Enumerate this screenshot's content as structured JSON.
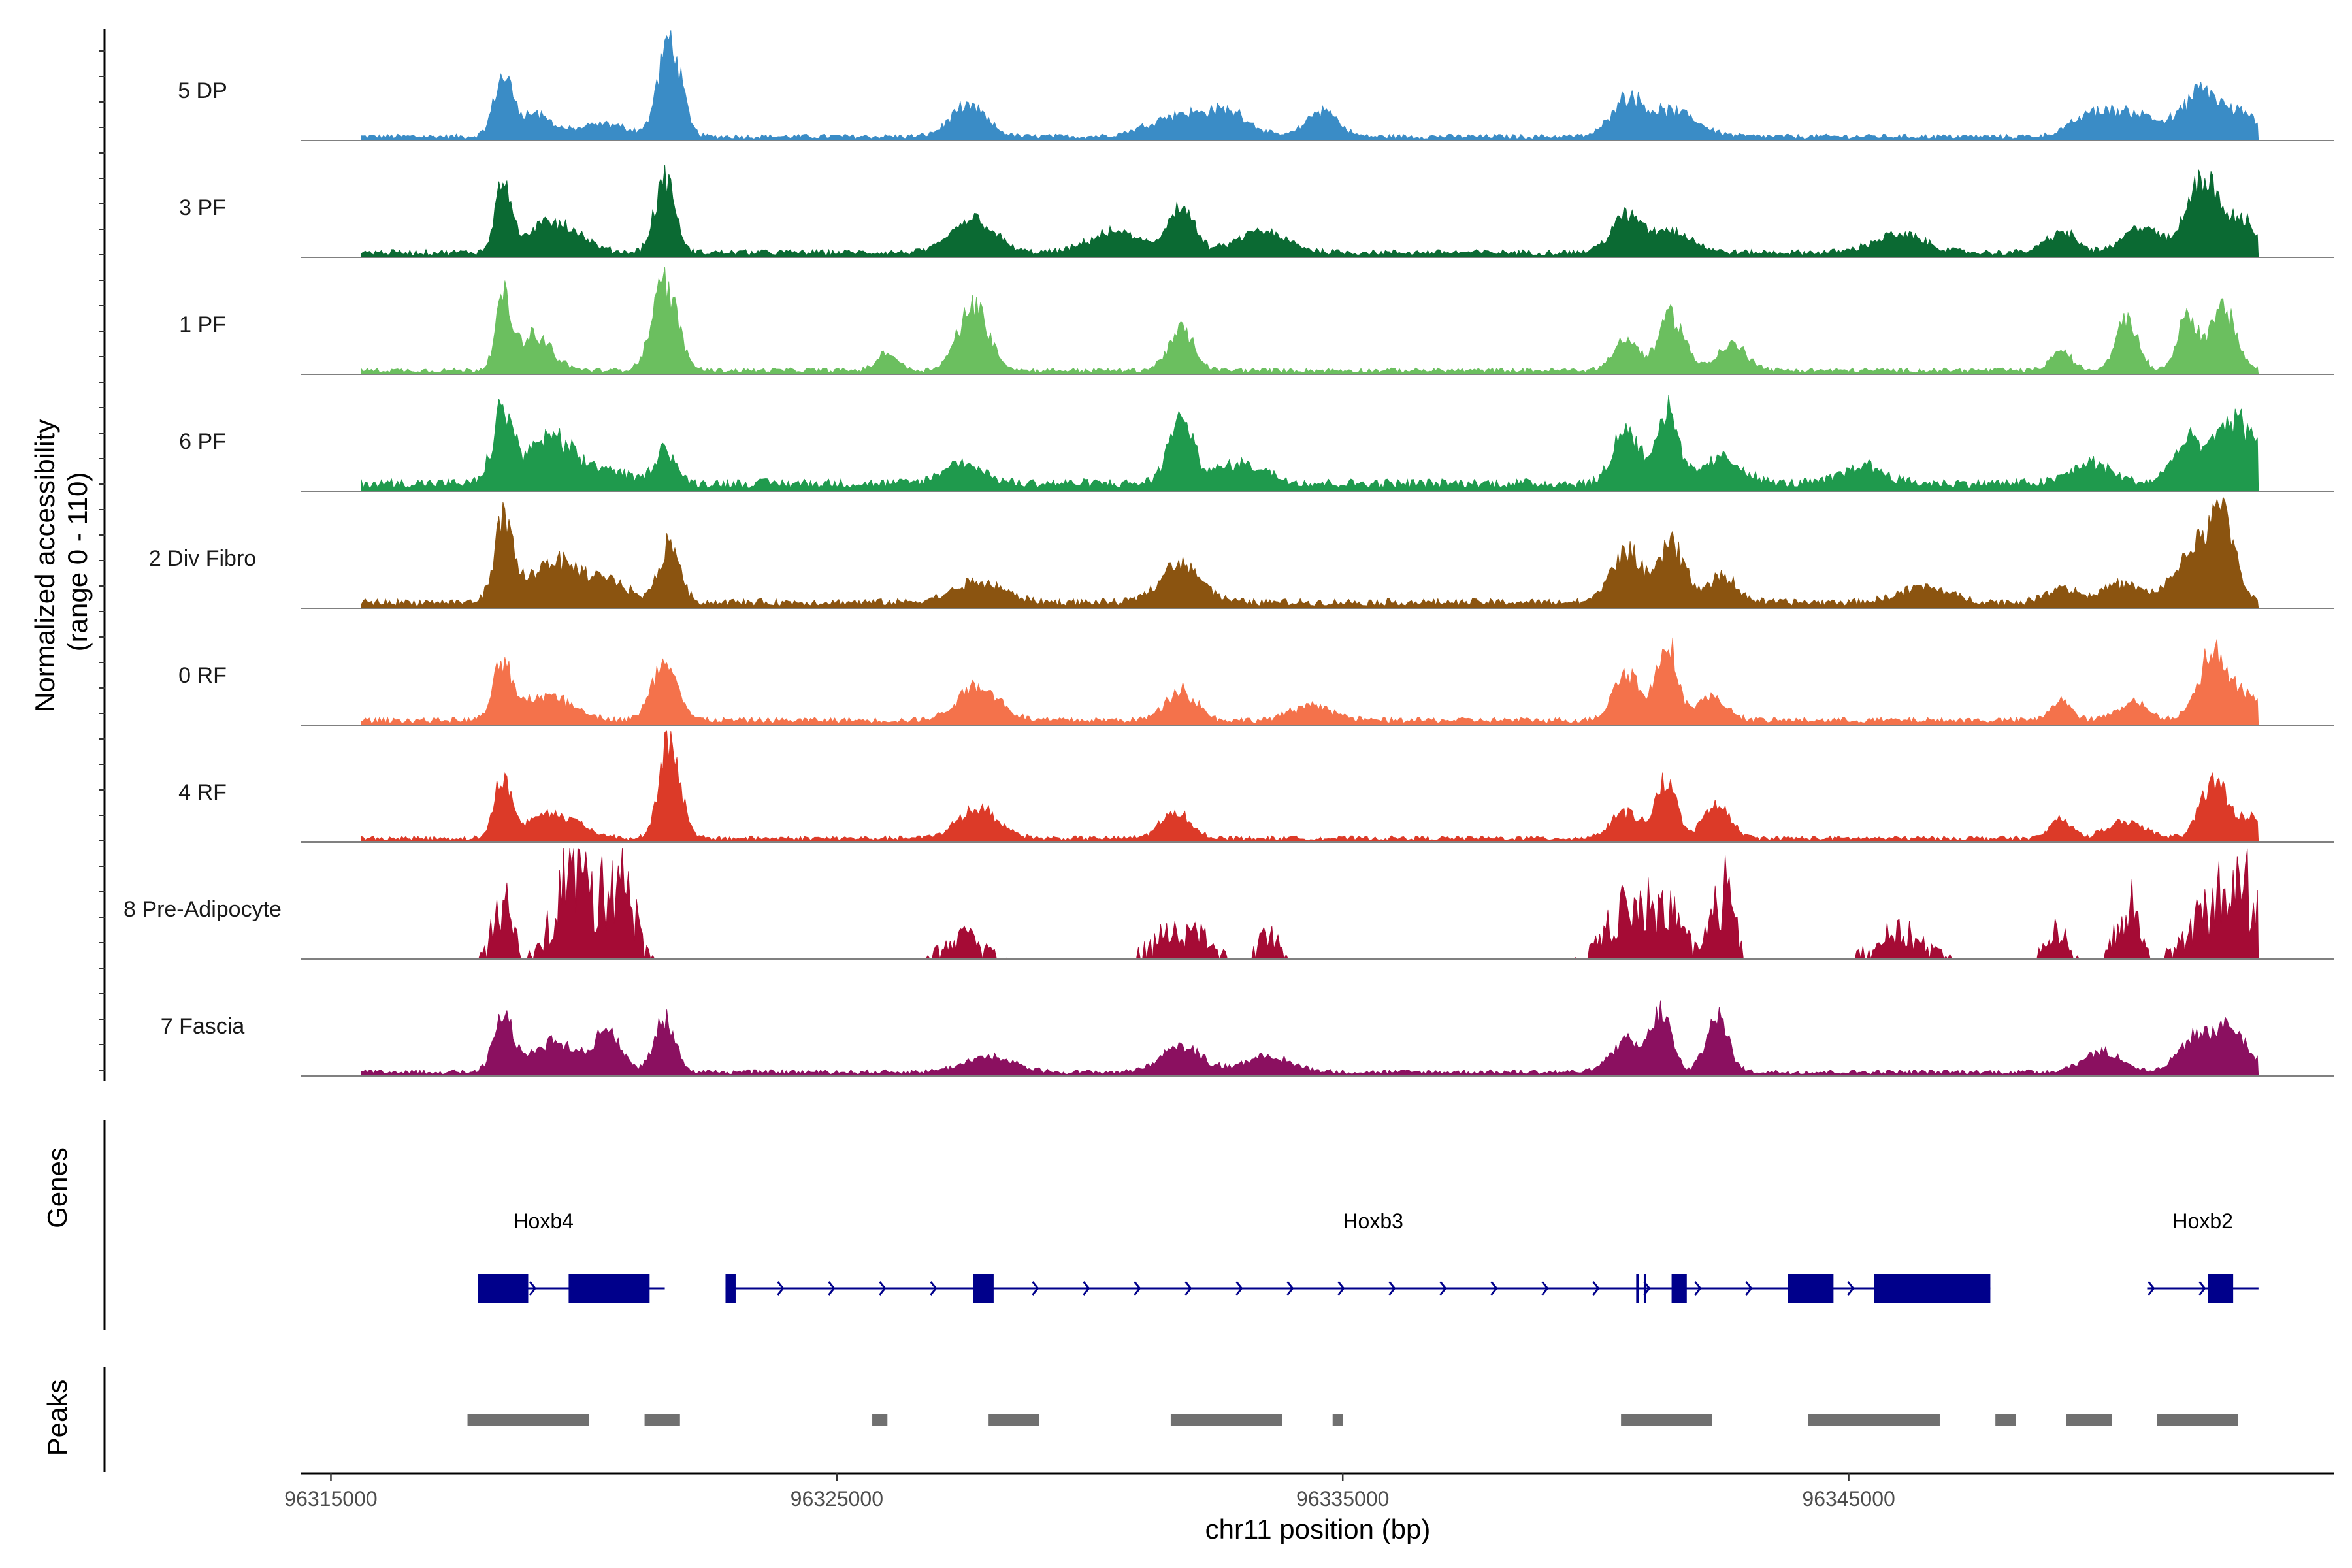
{
  "chart_data": {
    "type": "genome-coverage",
    "xlabel": "chr11 position (bp)",
    "xlim": [
      96314400,
      96354600
    ],
    "x_ticks": [
      96315000,
      96325000,
      96335000,
      96345000
    ],
    "x_tick_labels": [
      "96315000",
      "96325000",
      "96335000",
      "96345000"
    ],
    "ylabel_line1": "Normalized accessibility",
    "ylabel_line2": "(range 0 - 110)",
    "ylim": [
      0,
      110
    ],
    "tracks": [
      {
        "name": "5 DP",
        "color": "#3a8cc6",
        "base": 4,
        "noise": 0.45,
        "peaks": [
          [
            96318400,
            55,
            180
          ],
          [
            96319000,
            22,
            350
          ],
          [
            96320400,
            12,
            500
          ],
          [
            96321700,
            95,
            220
          ],
          [
            96327600,
            30,
            350
          ],
          [
            96331800,
            22,
            600
          ],
          [
            96332800,
            20,
            400
          ],
          [
            96334600,
            26,
            300
          ],
          [
            96340600,
            35,
            300
          ],
          [
            96341500,
            25,
            500
          ],
          [
            96349800,
            20,
            400
          ],
          [
            96350700,
            22,
            500
          ],
          [
            96352000,
            45,
            350
          ],
          [
            96352800,
            20,
            300
          ]
        ]
      },
      {
        "name": "3 PF",
        "color": "#0b6a33",
        "base": 5,
        "noise": 0.45,
        "peaks": [
          [
            96318400,
            75,
            150
          ],
          [
            96319400,
            30,
            500
          ],
          [
            96321600,
            70,
            200
          ],
          [
            96327700,
            35,
            400
          ],
          [
            96330500,
            20,
            500
          ],
          [
            96331800,
            45,
            250
          ],
          [
            96333400,
            20,
            500
          ],
          [
            96340600,
            35,
            300
          ],
          [
            96341500,
            22,
            400
          ],
          [
            96346000,
            18,
            500
          ],
          [
            96349200,
            20,
            300
          ],
          [
            96350800,
            25,
            350
          ],
          [
            96352000,
            75,
            300
          ],
          [
            96352800,
            30,
            300
          ]
        ]
      },
      {
        "name": "1 PF",
        "color": "#6bbf5f",
        "base": 4,
        "noise": 0.45,
        "peaks": [
          [
            96318400,
            65,
            150
          ],
          [
            96319000,
            35,
            350
          ],
          [
            96321600,
            85,
            250
          ],
          [
            96326000,
            18,
            200
          ],
          [
            96327700,
            65,
            300
          ],
          [
            96331800,
            40,
            250
          ],
          [
            96340600,
            30,
            250
          ],
          [
            96341500,
            55,
            250
          ],
          [
            96342700,
            25,
            300
          ],
          [
            96349200,
            20,
            200
          ],
          [
            96350500,
            50,
            220
          ],
          [
            96351700,
            55,
            200
          ],
          [
            96352400,
            60,
            250
          ]
        ]
      },
      {
        "name": "6 PF",
        "color": "#1f9a4d",
        "base": 8,
        "noise": 0.45,
        "peaks": [
          [
            96318400,
            70,
            200
          ],
          [
            96319300,
            45,
            400
          ],
          [
            96320300,
            15,
            500
          ],
          [
            96321600,
            35,
            200
          ],
          [
            96327500,
            20,
            400
          ],
          [
            96331800,
            60,
            250
          ],
          [
            96333000,
            20,
            500
          ],
          [
            96340600,
            55,
            250
          ],
          [
            96341400,
            70,
            220
          ],
          [
            96342500,
            25,
            400
          ],
          [
            96345300,
            18,
            400
          ],
          [
            96349800,
            20,
            400
          ],
          [
            96351700,
            40,
            300
          ],
          [
            96352500,
            50,
            300
          ],
          [
            96353000,
            35,
            300
          ]
        ]
      },
      {
        "name": "2 Div Fibro",
        "color": "#8b5410",
        "base": 6,
        "noise": 0.45,
        "peaks": [
          [
            96318400,
            75,
            180
          ],
          [
            96319400,
            40,
            500
          ],
          [
            96320500,
            20,
            400
          ],
          [
            96321700,
            60,
            200
          ],
          [
            96327800,
            20,
            500
          ],
          [
            96331800,
            40,
            400
          ],
          [
            96340600,
            50,
            300
          ],
          [
            96341500,
            60,
            250
          ],
          [
            96342500,
            25,
            300
          ],
          [
            96346500,
            15,
            500
          ],
          [
            96349200,
            15,
            300
          ],
          [
            96350400,
            18,
            400
          ],
          [
            96351800,
            50,
            350
          ],
          [
            96352400,
            80,
            250
          ]
        ]
      },
      {
        "name": "0 RF",
        "color": "#f4724b",
        "base": 5,
        "noise": 0.45,
        "peaks": [
          [
            96318400,
            55,
            180
          ],
          [
            96319300,
            25,
            500
          ],
          [
            96321600,
            55,
            250
          ],
          [
            96327800,
            35,
            400
          ],
          [
            96331800,
            30,
            300
          ],
          [
            96334400,
            15,
            400
          ],
          [
            96340600,
            50,
            250
          ],
          [
            96341400,
            80,
            200
          ],
          [
            96342300,
            22,
            300
          ],
          [
            96349200,
            20,
            200
          ],
          [
            96350600,
            18,
            300
          ],
          [
            96352200,
            65,
            300
          ],
          [
            96352900,
            20,
            300
          ]
        ]
      },
      {
        "name": "4 RF",
        "color": "#dc3a28",
        "base": 4,
        "noise": 0.45,
        "peaks": [
          [
            96318400,
            60,
            160
          ],
          [
            96319400,
            25,
            500
          ],
          [
            96321700,
            100,
            200
          ],
          [
            96327800,
            30,
            400
          ],
          [
            96331700,
            25,
            300
          ],
          [
            96340600,
            25,
            300
          ],
          [
            96341400,
            55,
            200
          ],
          [
            96342400,
            35,
            250
          ],
          [
            96349200,
            20,
            200
          ],
          [
            96350500,
            15,
            400
          ],
          [
            96352200,
            55,
            250
          ],
          [
            96352900,
            20,
            300
          ]
        ]
      },
      {
        "name": "8 Pre-Adipocyte",
        "color": "#a50b35",
        "base": 0,
        "noise": 1.3,
        "peaks": [
          [
            96318400,
            50,
            200
          ],
          [
            96319800,
            90,
            350
          ],
          [
            96320700,
            95,
            250
          ],
          [
            96327500,
            20,
            400
          ],
          [
            96331800,
            30,
            500
          ],
          [
            96333500,
            30,
            200
          ],
          [
            96340600,
            45,
            400
          ],
          [
            96341400,
            50,
            300
          ],
          [
            96342500,
            65,
            220
          ],
          [
            96346000,
            25,
            500
          ],
          [
            96349100,
            30,
            200
          ],
          [
            96350500,
            55,
            200
          ],
          [
            96352300,
            55,
            500
          ],
          [
            96352900,
            40,
            300
          ]
        ]
      },
      {
        "name": "7 Fascia",
        "color": "#8b1060",
        "base": 4,
        "noise": 0.45,
        "peaks": [
          [
            96318400,
            55,
            180
          ],
          [
            96319400,
            30,
            500
          ],
          [
            96320500,
            40,
            250
          ],
          [
            96321600,
            52,
            200
          ],
          [
            96328000,
            15,
            500
          ],
          [
            96331800,
            25,
            400
          ],
          [
            96333500,
            15,
            500
          ],
          [
            96340600,
            30,
            300
          ],
          [
            96341300,
            58,
            200
          ],
          [
            96342400,
            55,
            220
          ],
          [
            96350000,
            20,
            400
          ],
          [
            96351900,
            35,
            350
          ],
          [
            96352600,
            40,
            300
          ]
        ]
      }
    ],
    "genes": [
      {
        "name": "Hoxb4",
        "start": 96317900,
        "end": 96321600,
        "label_pos": 96319200,
        "exons": [
          [
            96317900,
            96318900
          ],
          [
            96319700,
            96321300
          ]
        ],
        "thin": []
      },
      {
        "name": "Hoxb3",
        "start": 96322800,
        "end": 96347800,
        "label_pos": 96335600,
        "exons": [
          [
            96327700,
            96328100
          ],
          [
            96341500,
            96341800
          ],
          [
            96343800,
            96344700
          ],
          [
            96345500,
            96347800
          ]
        ],
        "thin": [
          [
            96322800,
            96323000
          ],
          [
            96340800,
            96340850
          ],
          [
            96340950,
            96341000
          ]
        ]
      },
      {
        "name": "Hoxb2",
        "start": 96350900,
        "end": 96353100,
        "label_pos": 96352000,
        "exons": [
          [
            96352100,
            96352600
          ]
        ],
        "thin": []
      }
    ],
    "peaks": [
      [
        96317700,
        96320100
      ],
      [
        96321200,
        96321900
      ],
      [
        96325700,
        96326000
      ],
      [
        96328000,
        96329000
      ],
      [
        96331600,
        96333800
      ],
      [
        96334800,
        96335000
      ],
      [
        96340500,
        96342300
      ],
      [
        96344200,
        96346800
      ],
      [
        96347900,
        96348300
      ],
      [
        96349300,
        96350200
      ],
      [
        96351100,
        96352700
      ]
    ],
    "panel_labels": {
      "genes": "Genes",
      "peaks": "Peaks"
    }
  }
}
